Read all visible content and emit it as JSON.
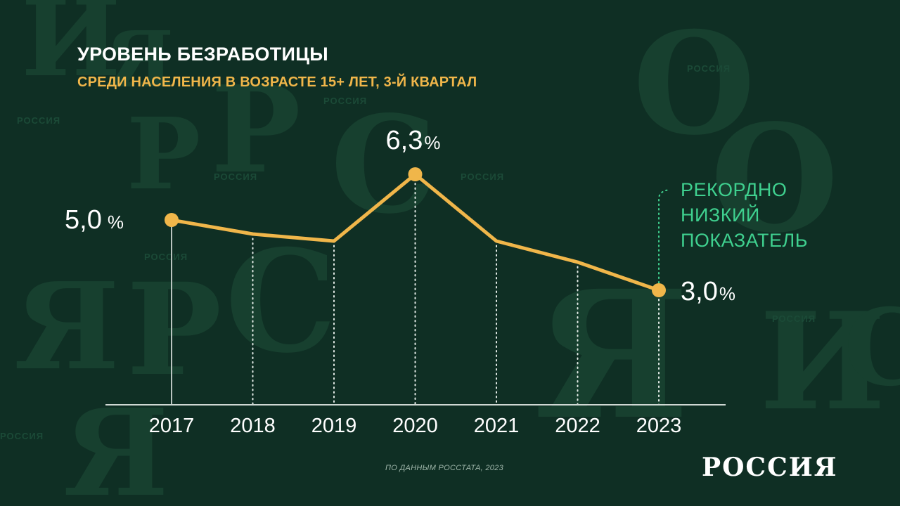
{
  "header": {
    "title": "УРОВЕНЬ БЕЗРАБОТИЦЫ",
    "subtitle": "СРЕДИ НАСЕЛЕНИЯ В ВОЗРАСТЕ 15+ ЛЕТ, 3-Й КВАРТАЛ"
  },
  "annotation": {
    "lines": [
      "РЕКОРДНО",
      "НИЗКИЙ",
      "ПОКАЗАТЕЛЬ"
    ]
  },
  "source": "ПО ДАННЫМ РОССТАТА, 2023",
  "logo": "РОССИЯ",
  "background": {
    "word": "РОССИЯ",
    "glyphs": [
      "И",
      "Я",
      "Р",
      "С",
      "О",
      "Я",
      "Р",
      "С",
      "И",
      "Я",
      "О",
      "Р",
      "С",
      "Я"
    ]
  },
  "colors": {
    "background": "#0f2f24",
    "line": "#f0b64a",
    "point": "#f0b64a",
    "annotation": "#3fd08f",
    "axis": "#cfd8d3",
    "text": "#ffffff"
  },
  "chart_data": {
    "type": "line",
    "categories": [
      "2017",
      "2018",
      "2019",
      "2020",
      "2021",
      "2022",
      "2023"
    ],
    "values": [
      5.0,
      4.6,
      4.4,
      6.3,
      4.4,
      3.8,
      3.0
    ],
    "labels": [
      {
        "index": 0,
        "number": "5,0",
        "unit": "%"
      },
      {
        "index": 3,
        "number": "6,3",
        "unit": "%"
      },
      {
        "index": 6,
        "number": "3,0",
        "unit": "%"
      }
    ],
    "highlighted_points": [
      0,
      3,
      6
    ],
    "grid": false
  }
}
